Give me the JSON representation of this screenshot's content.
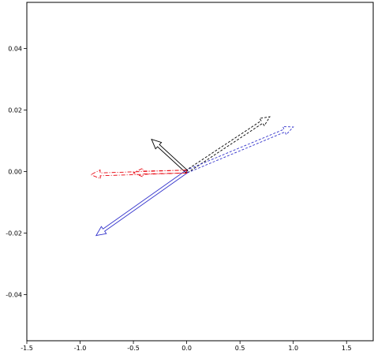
{
  "chart_data": {
    "type": "quiver",
    "xlim": [
      -1.5,
      1.75
    ],
    "ylim": [
      -0.055,
      0.055
    ],
    "xticks": [
      -1.5,
      -1.0,
      -0.5,
      0.0,
      0.5,
      1.0,
      1.5
    ],
    "xtick_labels": [
      "-1.5",
      "-1.0",
      "-0.5",
      "0.0",
      "0.5",
      "1.0",
      "1.5"
    ],
    "yticks": [
      0.04,
      0.02,
      0.0,
      -0.02,
      -0.04
    ],
    "ytick_labels": [
      "0.04",
      "0.02",
      "0.00",
      "-0.02",
      "-0.04"
    ],
    "grid": false,
    "arrows": [
      {
        "x0": 0.0,
        "y0": 0.0,
        "x1": 0.78,
        "y1": 0.0178,
        "color": "#000000",
        "style": "dashed"
      },
      {
        "x0": 0.0,
        "y0": 0.0,
        "x1": 1.0,
        "y1": 0.0145,
        "color": "#3333cc",
        "style": "dashed"
      },
      {
        "x0": 0.0,
        "y0": 0.0,
        "x1": -0.33,
        "y1": 0.0105,
        "color": "#000000",
        "style": "solid"
      },
      {
        "x0": 0.0,
        "y0": 0.0,
        "x1": -0.85,
        "y1": -0.0208,
        "color": "#3333cc",
        "style": "solid"
      },
      {
        "x0": 0.0,
        "y0": 0.0,
        "x1": -0.9,
        "y1": -0.001,
        "color": "#e8000b",
        "style": "dashdot"
      },
      {
        "x0": 0.0,
        "y0": 0.0,
        "x1": -0.5,
        "y1": -0.0004,
        "color": "#e8000b",
        "style": "dashdot"
      }
    ]
  }
}
